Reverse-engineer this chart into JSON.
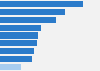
{
  "values": [
    68,
    53,
    46,
    34,
    31,
    30,
    28,
    26,
    17
  ],
  "bar_colors": [
    "#2b7bca",
    "#2b7bca",
    "#2b7bca",
    "#2b7bca",
    "#2b7bca",
    "#2b7bca",
    "#2b7bca",
    "#2b7bca",
    "#a8cdf0"
  ],
  "background_color": "#f2f2f2",
  "plot_bg_color": "#f2f2f2",
  "xlim": [
    0,
    82
  ],
  "grid_color": "#cccccc"
}
